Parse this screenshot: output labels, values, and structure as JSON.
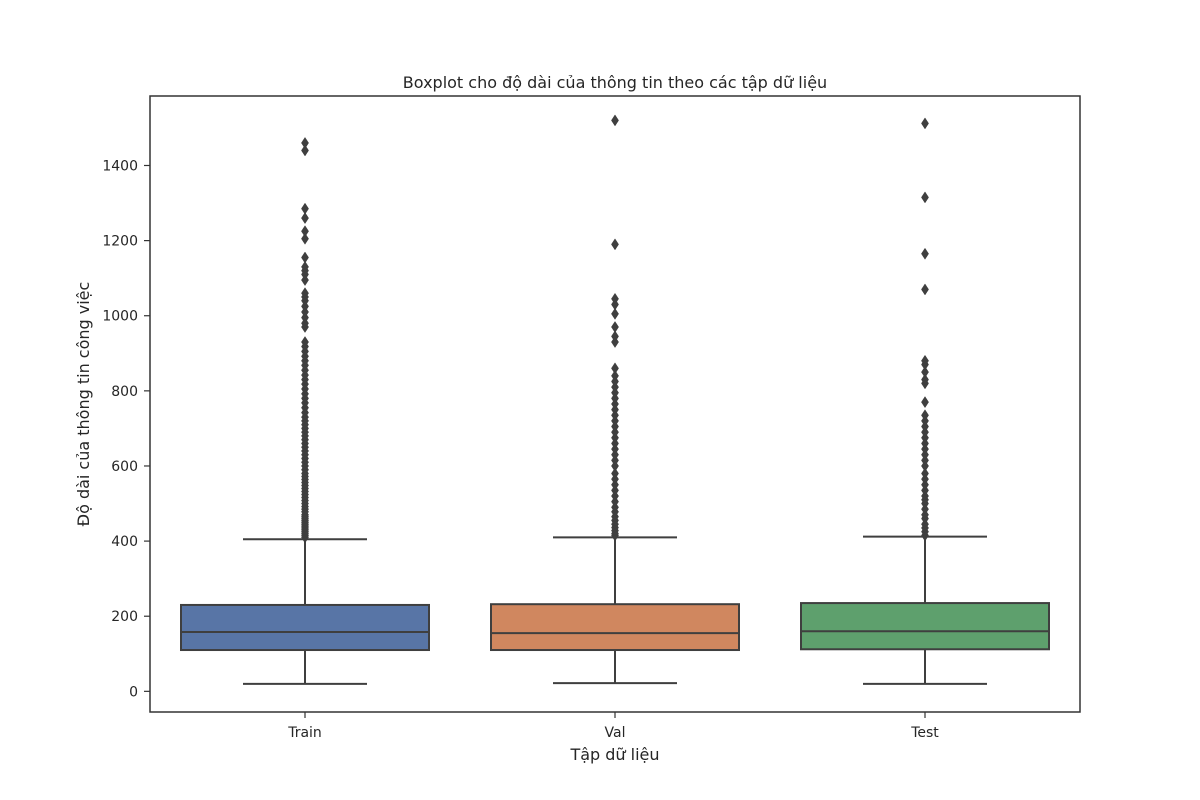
{
  "chart_data": {
    "type": "boxplot",
    "title": "Boxplot cho độ dài của thông tin theo các tập dữ liệu",
    "xlabel": "Tập dữ liệu",
    "ylabel": "Độ dài của thông tin công việc",
    "ylim": [
      -55,
      1585
    ],
    "yticks": [
      0,
      200,
      400,
      600,
      800,
      1000,
      1200,
      1400
    ],
    "grid": false,
    "categories": [
      "Train",
      "Val",
      "Test"
    ],
    "colors": [
      "#5875a6",
      "#d0875f",
      "#5ea06d"
    ],
    "series": [
      {
        "category": "Train",
        "whisker_low": 20,
        "q1": 110,
        "median": 158,
        "q3": 230,
        "whisker_high": 405,
        "outliers": [
          410,
          415,
          420,
          425,
          430,
          435,
          440,
          445,
          450,
          455,
          460,
          465,
          470,
          478,
          485,
          492,
          500,
          508,
          516,
          524,
          532,
          540,
          548,
          556,
          564,
          572,
          580,
          590,
          600,
          610,
          620,
          630,
          640,
          650,
          660,
          670,
          680,
          690,
          700,
          710,
          720,
          730,
          742,
          755,
          768,
          780,
          792,
          805,
          818,
          830,
          842,
          855,
          868,
          880,
          892,
          905,
          918,
          930,
          970,
          980,
          995,
          1010,
          1025,
          1040,
          1050,
          1060,
          1095,
          1110,
          1120,
          1130,
          1155,
          1205,
          1225,
          1260,
          1285,
          1440,
          1460
        ]
      },
      {
        "category": "Val",
        "whisker_low": 22,
        "q1": 110,
        "median": 155,
        "q3": 232,
        "whisker_high": 410,
        "outliers": [
          415,
          420,
          428,
          436,
          445,
          455,
          465,
          478,
          490,
          505,
          520,
          535,
          550,
          565,
          580,
          600,
          615,
          630,
          645,
          660,
          675,
          690,
          705,
          720,
          735,
          750,
          765,
          780,
          795,
          810,
          825,
          840,
          860,
          930,
          945,
          970,
          1005,
          1030,
          1045,
          1190,
          1520
        ]
      },
      {
        "category": "Test",
        "whisker_low": 20,
        "q1": 112,
        "median": 160,
        "q3": 235,
        "whisker_high": 412,
        "outliers": [
          415,
          425,
          435,
          445,
          460,
          470,
          485,
          500,
          510,
          520,
          535,
          550,
          565,
          580,
          600,
          615,
          630,
          645,
          660,
          675,
          690,
          705,
          720,
          735,
          770,
          820,
          830,
          850,
          870,
          880,
          1070,
          1165,
          1315,
          1512
        ]
      }
    ]
  }
}
